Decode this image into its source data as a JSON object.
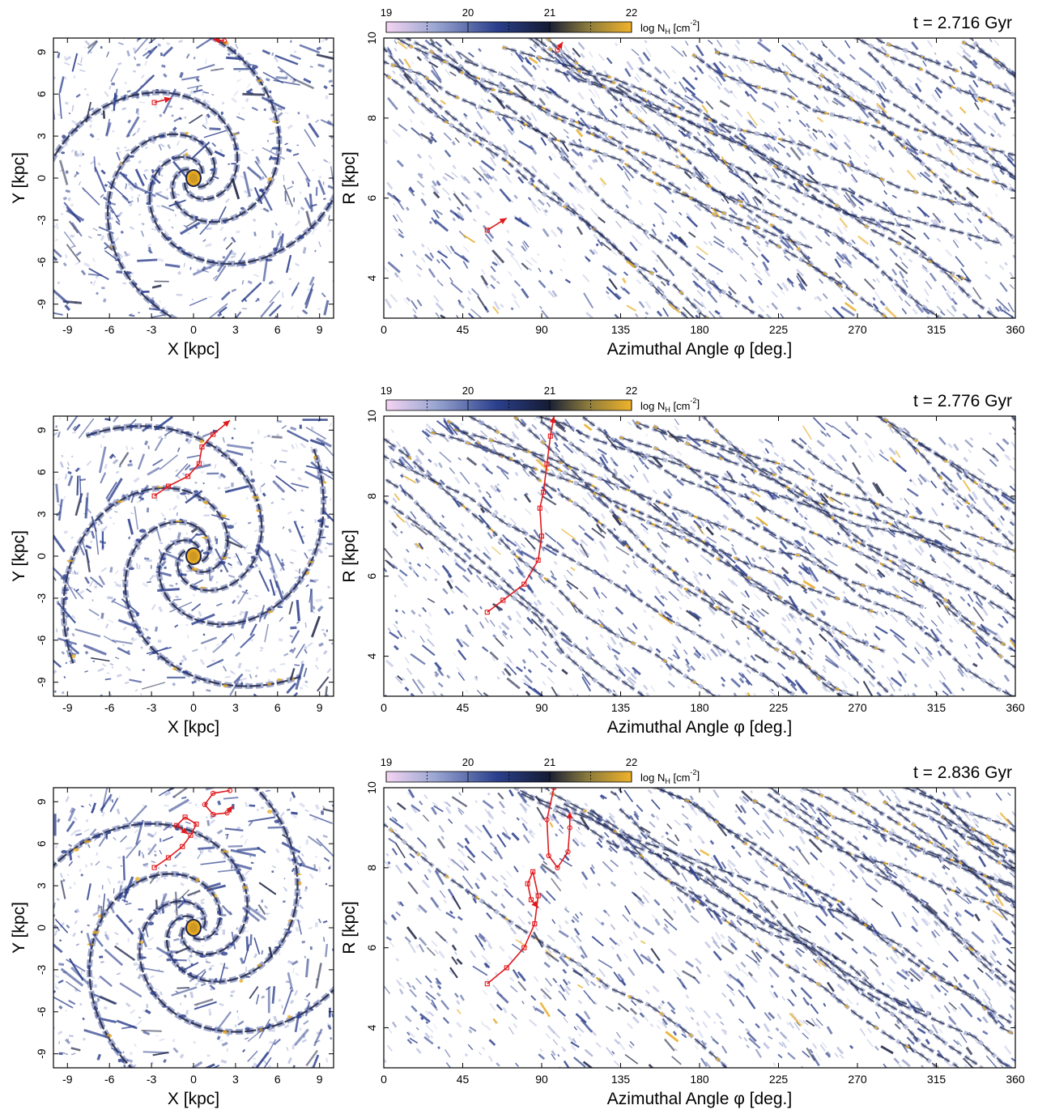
{
  "panels": [
    {
      "time_label": "t = 2.716 Gyr",
      "xy_trajectory": [
        [
          -2.8,
          5.4
        ],
        [
          -1.6,
          5.7
        ]
      ],
      "xy_trajectory_2": [
        [
          2.2,
          9.8
        ],
        [
          1.4,
          9.9
        ]
      ],
      "polar_trajectory": [
        [
          59,
          5.2
        ],
        [
          70,
          5.5
        ]
      ],
      "polar_trajectory_2": [
        [
          99,
          9.7
        ],
        [
          102,
          9.9
        ]
      ]
    },
    {
      "time_label": "t = 2.776 Gyr",
      "xy_trajectory": [
        [
          -2.8,
          4.3
        ],
        [
          -1.8,
          5.0
        ],
        [
          -0.4,
          5.7
        ],
        [
          0.4,
          6.6
        ],
        [
          0.6,
          7.8
        ],
        [
          1.4,
          8.7
        ],
        [
          2.6,
          9.7
        ]
      ],
      "polar_trajectory": [
        [
          59,
          5.1
        ],
        [
          68,
          5.4
        ],
        [
          80,
          5.8
        ],
        [
          88,
          6.4
        ],
        [
          90,
          7.0
        ],
        [
          89,
          7.7
        ],
        [
          91,
          8.1
        ],
        [
          93,
          8.8
        ],
        [
          95,
          9.5
        ],
        [
          97,
          10.0
        ]
      ]
    },
    {
      "time_label": "t = 2.836 Gyr",
      "xy_trajectory": [
        [
          -2.8,
          4.3
        ],
        [
          -1.8,
          5.0
        ],
        [
          -0.8,
          5.8
        ],
        [
          -0.2,
          6.6
        ],
        [
          0.2,
          7.4
        ],
        [
          -0.6,
          7.9
        ],
        [
          -1.2,
          7.3
        ],
        [
          -0.4,
          6.7
        ]
      ],
      "xy_trajectory_2": [
        [
          2.6,
          9.8
        ],
        [
          1.4,
          9.6
        ],
        [
          0.8,
          8.8
        ],
        [
          1.4,
          8.1
        ],
        [
          2.4,
          8.2
        ],
        [
          2.8,
          8.7
        ]
      ],
      "polar_trajectory": [
        [
          59,
          5.1
        ],
        [
          70,
          5.5
        ],
        [
          80,
          6.0
        ],
        [
          86,
          6.6
        ],
        [
          88,
          7.3
        ],
        [
          85,
          7.9
        ],
        [
          82,
          7.6
        ],
        [
          84,
          7.2
        ],
        [
          88,
          7.0
        ]
      ],
      "polar_trajectory_2": [
        [
          97,
          10.0
        ],
        [
          93,
          9.2
        ],
        [
          94,
          8.3
        ],
        [
          99,
          8.0
        ],
        [
          105,
          8.4
        ],
        [
          106,
          9.0
        ],
        [
          106,
          9.4
        ]
      ]
    }
  ],
  "chart_data": {
    "type": "heatmap",
    "description_title": "",
    "left_panel": {
      "xlabel": "X [kpc]",
      "ylabel": "Y [kpc]",
      "xlim": [
        -10,
        10
      ],
      "ylim": [
        -10,
        10
      ],
      "xticks": [
        "-9",
        "-6",
        "-3",
        "0",
        "3",
        "6",
        "9"
      ],
      "yticks": [
        "-9",
        "-6",
        "-3",
        "0",
        "3",
        "6",
        "9"
      ]
    },
    "right_panel": {
      "xlabel": "Azimuthal Angle φ [deg.]",
      "ylabel": "R [kpc]",
      "xlim": [
        0,
        360
      ],
      "ylim": [
        3,
        10
      ],
      "xticks": [
        "0",
        "45",
        "90",
        "135",
        "180",
        "225",
        "270",
        "315",
        "360"
      ],
      "yticks": [
        "4",
        "6",
        "8",
        "10"
      ]
    },
    "colorbar": {
      "label": "log N",
      "label_sub": "H",
      "label_unit": " [cm",
      "label_exp": "-2",
      "label_end": "]",
      "range": [
        19,
        22
      ],
      "ticks": [
        "19",
        "20",
        "21",
        "22"
      ],
      "colors": [
        "#f4d4f2",
        "#9aa6d2",
        "#2b3f8c",
        "#151c35",
        "#8a7a3c",
        "#f0b32a"
      ]
    },
    "trajectory_color": "#e0191d",
    "gas_colors": {
      "diffuse": "#b7bde0",
      "mid": "#2c3f8c",
      "dense": "#1e2444",
      "core": "#e8ab22"
    }
  }
}
